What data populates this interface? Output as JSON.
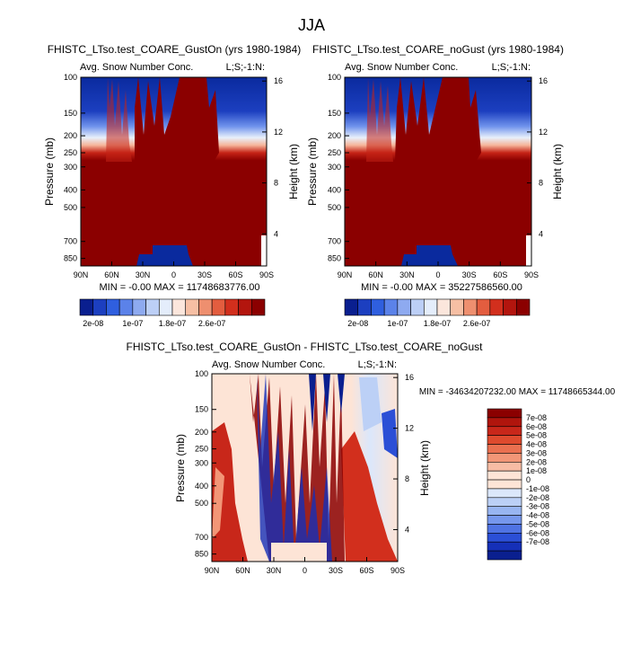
{
  "main_title": "JJA",
  "chart_data": [
    {
      "type": "heatmap",
      "id": "panel-gust-on",
      "title": "FHISTC_LTso.test_COARE_GustOn (yrs 1980-1984)",
      "subtitle": "Avg. Snow Number Conc.",
      "right_label": "L;S;-1:N:",
      "xlabel": "",
      "ylabel": "Pressure (mb)",
      "y2label": "Height (km)",
      "x_ticks": [
        "90N",
        "60N",
        "30N",
        "0",
        "30S",
        "60S",
        "90S"
      ],
      "y_ticks": [
        "100",
        "150",
        "200",
        "250",
        "300",
        "400",
        "500",
        "700",
        "850"
      ],
      "y2_ticks": [
        "16",
        "12",
        "8",
        "4"
      ],
      "stats": "MIN = -0.00  MAX = 11748683776.00",
      "description": "Upper levels near zero (blue), sharp transition ~200-250 mb to saturated high values (dark red) below; tropical columns reach 100 mb; near-surface low region 20N-10S."
    },
    {
      "type": "heatmap",
      "id": "panel-no-gust",
      "title": "FHISTC_LTso.test_COARE_noGust (yrs 1980-1984)",
      "subtitle": "Avg. Snow Number Conc.",
      "right_label": "L;S;-1:N:",
      "xlabel": "",
      "ylabel": "Pressure (mb)",
      "y2label": "Height (km)",
      "x_ticks": [
        "90N",
        "60N",
        "30N",
        "0",
        "30S",
        "60S",
        "90S"
      ],
      "y_ticks": [
        "100",
        "150",
        "200",
        "250",
        "300",
        "400",
        "500",
        "700",
        "850"
      ],
      "y2_ticks": [
        "16",
        "12",
        "8",
        "4"
      ],
      "stats": "MIN = -0.00  MAX = 35227586560.00",
      "description": "Nearly identical pattern to GustOn panel."
    },
    {
      "type": "heatmap",
      "id": "panel-difference",
      "title": "FHISTC_LTso.test_COARE_GustOn - FHISTC_LTso.test_COARE_noGust",
      "subtitle": "Avg. Snow Number Conc.",
      "right_label": "L;S;-1:N:",
      "ylabel": "Pressure (mb)",
      "y2label": "Height (km)",
      "x_ticks": [
        "90N",
        "60N",
        "30N",
        "0",
        "30S",
        "60S",
        "90S"
      ],
      "y_ticks": [
        "100",
        "150",
        "200",
        "250",
        "300",
        "400",
        "500",
        "700",
        "850"
      ],
      "y2_ticks": [
        "16",
        "12",
        "8",
        "4"
      ],
      "stats": "MIN = -34634207232.00  MAX = 11748665344.00",
      "description": "Noisy difference field with alternating red and blue streaks, strongest in tropics and lower levels."
    }
  ],
  "colorbar_top": {
    "labels": [
      "2e-08",
      "1e-07",
      "1.8e-07",
      "2.6e-07"
    ],
    "colors": [
      "#0a1f8f",
      "#1c3fc0",
      "#2f5fdf",
      "#5b82e9",
      "#8eaaf0",
      "#bccff6",
      "#e4edfb",
      "#fbe6dc",
      "#f6bfa4",
      "#ee8f6f",
      "#e35d3f",
      "#d22f1d",
      "#b3150e",
      "#8b0000"
    ]
  },
  "colorbar_diff": {
    "labels": [
      "7e-08",
      "6e-08",
      "5e-08",
      "4e-08",
      "3e-08",
      "2e-08",
      "1e-08",
      "0",
      "-1e-08",
      "-2e-08",
      "-3e-08",
      "-4e-08",
      "-5e-08",
      "-6e-08",
      "-7e-08"
    ],
    "colors": [
      "#8b0000",
      "#b0150d",
      "#c8271a",
      "#de4a2e",
      "#ea7050",
      "#f29677",
      "#f7bca4",
      "#fde4d6",
      "#fde4d6",
      "#dbe7fb",
      "#bcd0f6",
      "#98b5f1",
      "#7697ec",
      "#4f73e3",
      "#2b4fd6",
      "#1530b8",
      "#0a1f8f"
    ]
  }
}
